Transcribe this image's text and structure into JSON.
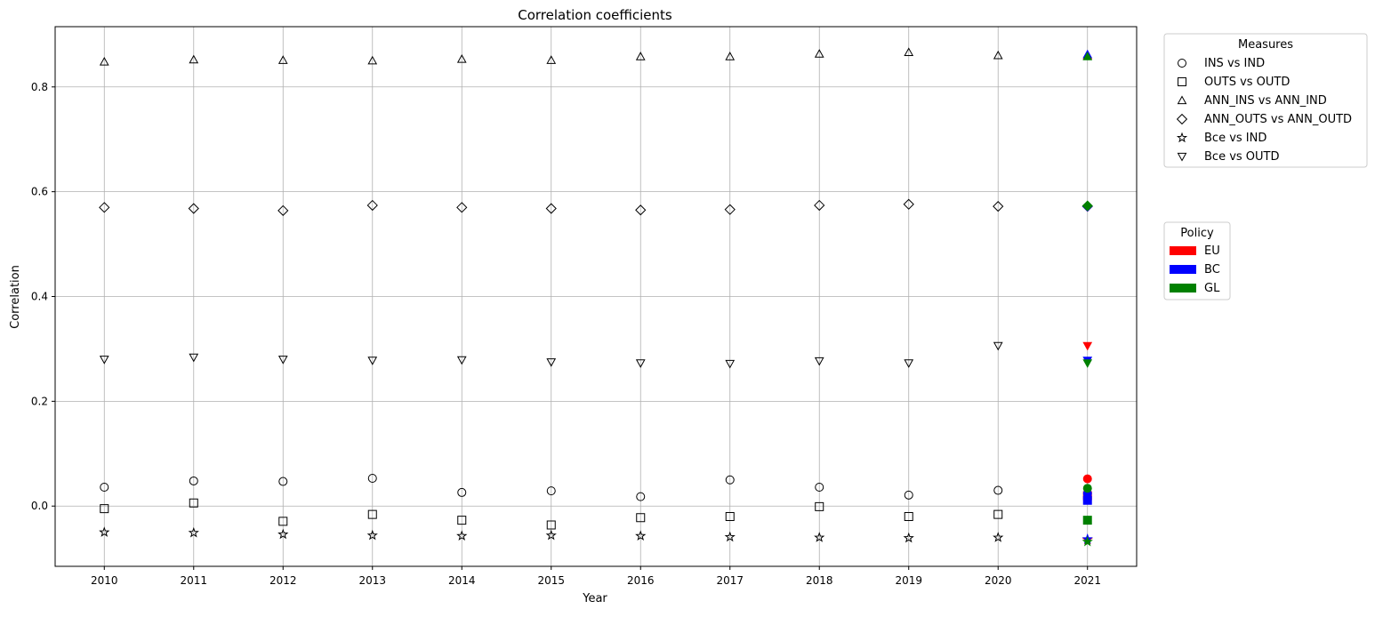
{
  "chart_data": {
    "type": "scatter",
    "title": "Correlation coefficients",
    "xlabel": "Year",
    "ylabel": "Correlation",
    "x": [
      2010,
      2011,
      2012,
      2013,
      2014,
      2015,
      2016,
      2017,
      2018,
      2019,
      2020
    ],
    "xlim": [
      2009.45,
      2021.55
    ],
    "ylim": [
      -0.115,
      0.915
    ],
    "xticks": [
      2010,
      2011,
      2012,
      2013,
      2014,
      2015,
      2016,
      2017,
      2018,
      2019,
      2020,
      2021
    ],
    "yticks": [
      0.0,
      0.2,
      0.4,
      0.6,
      0.8
    ],
    "grid": true,
    "series": [
      {
        "name": "INS vs IND",
        "marker": "circle",
        "values": [
          0.036,
          0.048,
          0.047,
          0.053,
          0.026,
          0.029,
          0.018,
          0.05,
          0.036,
          0.021,
          0.03
        ]
      },
      {
        "name": "OUTS vs OUTD",
        "marker": "square",
        "values": [
          -0.005,
          0.006,
          -0.029,
          -0.016,
          -0.027,
          -0.036,
          -0.022,
          -0.02,
          -0.001,
          -0.02,
          -0.016
        ]
      },
      {
        "name": "ANN_INS vs ANN_IND",
        "marker": "triangle-up",
        "values": [
          0.848,
          0.852,
          0.851,
          0.85,
          0.853,
          0.851,
          0.858,
          0.858,
          0.863,
          0.866,
          0.86
        ]
      },
      {
        "name": "ANN_OUTS vs ANN_OUTD",
        "marker": "diamond",
        "values": [
          0.57,
          0.568,
          0.564,
          0.574,
          0.57,
          0.568,
          0.565,
          0.566,
          0.574,
          0.576,
          0.572
        ]
      },
      {
        "name": "Bce vs IND",
        "marker": "star",
        "values": [
          -0.05,
          -0.051,
          -0.054,
          -0.056,
          -0.057,
          -0.056,
          -0.057,
          -0.059,
          -0.06,
          -0.061,
          -0.06
        ]
      },
      {
        "name": "Bce vs OUTD",
        "marker": "triangle-down",
        "values": [
          0.28,
          0.284,
          0.28,
          0.278,
          0.279,
          0.275,
          0.273,
          0.272,
          0.277,
          0.273,
          0.306
        ]
      }
    ],
    "policy_2021": {
      "x": 2021,
      "series": [
        {
          "name": "EU",
          "color": "#ff0000",
          "values": {
            "INS vs IND": 0.052,
            "OUTS vs OUTD": 0.02,
            "ANN_INS vs ANN_IND": 0.86,
            "ANN_OUTS vs ANN_OUTD": 0.572,
            "Bce vs IND": -0.064,
            "Bce vs OUTD": 0.306
          }
        },
        {
          "name": "BC",
          "color": "#0000ff",
          "values": {
            "INS vs IND": 0.024,
            "OUTS vs OUTD": 0.011,
            "ANN_INS vs ANN_IND": 0.862,
            "ANN_OUTS vs ANN_OUTD": 0.572,
            "Bce vs IND": -0.063,
            "Bce vs OUTD": 0.278
          }
        },
        {
          "name": "GL",
          "color": "#008000",
          "values": {
            "INS vs IND": 0.034,
            "OUTS vs OUTD": -0.027,
            "ANN_INS vs ANN_IND": 0.858,
            "ANN_OUTS vs ANN_OUTD": 0.573,
            "Bce vs IND": -0.068,
            "Bce vs OUTD": 0.273
          }
        }
      ]
    },
    "legend_measures": {
      "title": "Measures",
      "placement": "outside-right-top",
      "entries": [
        {
          "label": "INS vs IND",
          "marker": "circle"
        },
        {
          "label": "OUTS vs OUTD",
          "marker": "square"
        },
        {
          "label": "ANN_INS vs ANN_IND",
          "marker": "triangle-up"
        },
        {
          "label": "ANN_OUTS vs ANN_OUTD",
          "marker": "diamond"
        },
        {
          "label": "Bce vs IND",
          "marker": "star"
        },
        {
          "label": "Bce vs OUTD",
          "marker": "triangle-down"
        }
      ]
    },
    "legend_policy": {
      "title": "Policy",
      "placement": "outside-right-middle",
      "entries": [
        {
          "label": "EU",
          "color": "#ff0000"
        },
        {
          "label": "BC",
          "color": "#0000ff"
        },
        {
          "label": "GL",
          "color": "#008000"
        }
      ]
    }
  }
}
